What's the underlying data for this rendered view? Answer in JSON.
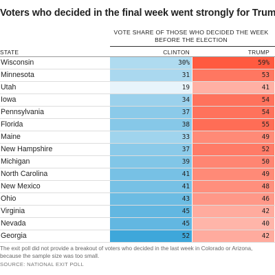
{
  "title": "Voters who decided in the final week went strongly for Trump",
  "column_header": {
    "line1": "VOTE SHARE OF THOSE WHO DECIDED THE WEEK",
    "line2": "BEFORE THE ELECTION"
  },
  "headers": {
    "state": "STATE",
    "clinton": "CLINTON",
    "trump": "TRUMP"
  },
  "note": "The exit poll did not provide a breakout of voters who decided in the last week in Colorado or Arizona, because the sample size was too small.",
  "source": "SOURCE: NATIONAL EXIT POLL",
  "colors": {
    "clinton_scale": [
      "#ffffff",
      "#3ea7da"
    ],
    "trump_scale": [
      "#ffffff",
      "#ff5a40"
    ]
  },
  "chart_data": {
    "type": "table",
    "title": "Voters who decided in the final week went strongly for Trump",
    "columns": [
      "STATE",
      "CLINTON",
      "TRUMP"
    ],
    "rows": [
      {
        "state": "Wisconsin",
        "clinton": "30%",
        "trump": "59%"
      },
      {
        "state": "Minnesota",
        "clinton": "31",
        "trump": "53"
      },
      {
        "state": "Utah",
        "clinton": "19",
        "trump": "41"
      },
      {
        "state": "Iowa",
        "clinton": "34",
        "trump": "54"
      },
      {
        "state": "Pennsylvania",
        "clinton": "37",
        "trump": "54"
      },
      {
        "state": "Florida",
        "clinton": "38",
        "trump": "55"
      },
      {
        "state": "Maine",
        "clinton": "33",
        "trump": "49"
      },
      {
        "state": "New Hampshire",
        "clinton": "37",
        "trump": "52"
      },
      {
        "state": "Michigan",
        "clinton": "39",
        "trump": "50"
      },
      {
        "state": "North Carolina",
        "clinton": "41",
        "trump": "49"
      },
      {
        "state": "New Mexico",
        "clinton": "41",
        "trump": "48"
      },
      {
        "state": "Ohio",
        "clinton": "43",
        "trump": "46"
      },
      {
        "state": "Virginia",
        "clinton": "45",
        "trump": "42"
      },
      {
        "state": "Nevada",
        "clinton": "45",
        "trump": "40"
      },
      {
        "state": "Georgia",
        "clinton": "52",
        "trump": "42"
      }
    ]
  }
}
